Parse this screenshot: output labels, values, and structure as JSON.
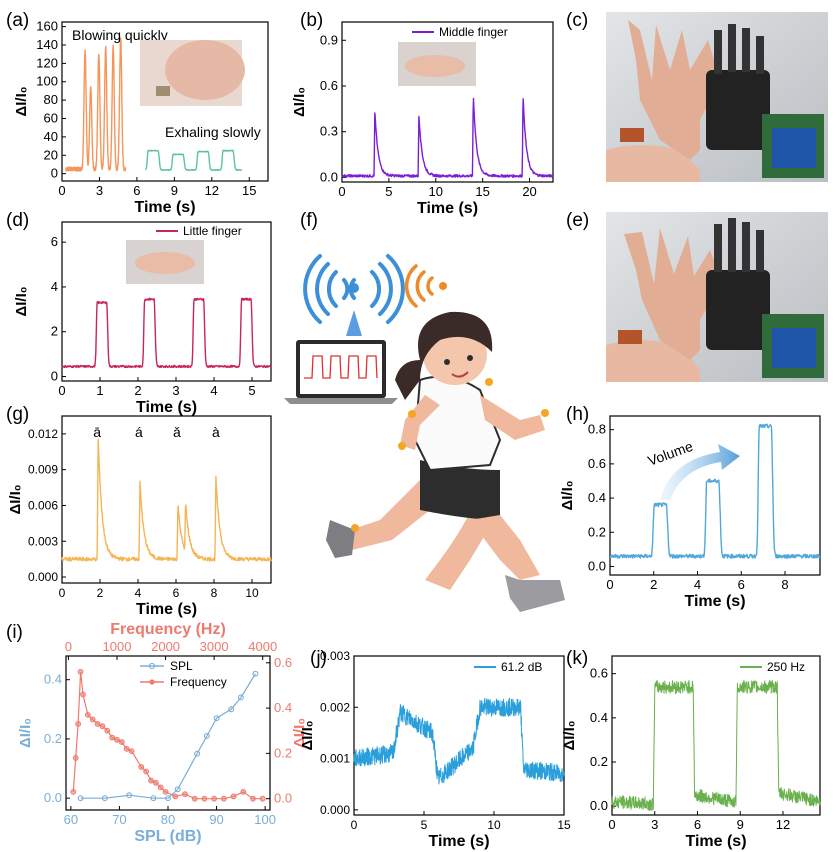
{
  "chart_data": [
    {
      "id": "a",
      "panel_label": "(a)",
      "type": "line",
      "xlabel": "Time (s)",
      "ylabel": "ΔI/I₀",
      "xlim": [
        0,
        16.5
      ],
      "ylim": [
        -8,
        165
      ],
      "xticks": [
        0,
        3,
        6,
        9,
        12,
        15
      ],
      "yticks": [
        0,
        20,
        40,
        60,
        80,
        100,
        120,
        140,
        160
      ],
      "annotations": [
        "Blowing quickly",
        "Exhaling slowly"
      ],
      "series": [
        {
          "name": "Blowing quickly",
          "color": "#f4965b",
          "peaks": [
            [
              1.85,
              134
            ],
            [
              2.3,
              95
            ],
            [
              2.95,
              130
            ],
            [
              3.5,
              138
            ],
            [
              4.1,
              138
            ],
            [
              4.7,
              148
            ]
          ],
          "baseline": 5,
          "x_range": [
            0.3,
            5.1
          ],
          "peak_width": 0.12
        },
        {
          "name": "Exhaling slowly",
          "color": "#5cc49b",
          "peaks": [
            [
              7.3,
              25
            ],
            [
              9.3,
              21
            ],
            [
              11.3,
              24
            ],
            [
              13.3,
              25
            ]
          ],
          "baseline": 4,
          "x_range": [
            6.7,
            14.4
          ],
          "plateau": 0.8
        }
      ]
    },
    {
      "id": "b",
      "panel_label": "(b)",
      "type": "line",
      "xlabel": "Time (s)",
      "ylabel": "ΔI/I₀",
      "xlim": [
        0,
        22.5
      ],
      "ylim": [
        -0.03,
        1.02
      ],
      "xticks": [
        0,
        5,
        10,
        15,
        20
      ],
      "yticks": [
        0.0,
        0.3,
        0.6,
        0.9
      ],
      "legend": [
        "Middle finger"
      ],
      "series": [
        {
          "name": "Middle finger",
          "color": "#7a1fd6",
          "peaks": [
            [
              3.5,
              0.44
            ],
            [
              8.2,
              0.42
            ],
            [
              14.0,
              0.55
            ],
            [
              19.3,
              0.55
            ]
          ],
          "baseline": 0.01,
          "x_range": [
            0,
            22.5
          ],
          "decay": 1.0
        }
      ]
    },
    {
      "id": "d",
      "panel_label": "(d)",
      "type": "line",
      "xlabel": "Time (s)",
      "ylabel": "ΔI/I₀",
      "xlim": [
        0,
        5.5
      ],
      "ylim": [
        -0.2,
        6.9
      ],
      "xticks": [
        0,
        1,
        2,
        3,
        4,
        5
      ],
      "yticks": [
        0,
        2,
        4,
        6
      ],
      "legend": [
        "Little finger"
      ],
      "series": [
        {
          "name": "Little finger",
          "color": "#c8245e",
          "peaks": [
            [
              1.05,
              3.3
            ],
            [
              2.3,
              3.45
            ],
            [
              3.6,
              3.45
            ],
            [
              4.85,
              3.45
            ]
          ],
          "baseline": 0.45,
          "x_range": [
            0,
            5.5
          ],
          "plateau": 0.25
        }
      ]
    },
    {
      "id": "g",
      "panel_label": "(g)",
      "type": "line",
      "xlabel": "Time (s)",
      "ylabel": "ΔI/I₀",
      "xlim": [
        0,
        11
      ],
      "ylim": [
        -0.0005,
        0.0135
      ],
      "xticks": [
        0,
        2,
        4,
        6,
        8,
        10
      ],
      "yticks": [
        0.0,
        0.003,
        0.006,
        0.009,
        0.012
      ],
      "tone_labels": [
        {
          "x": 1.85,
          "text": "ā"
        },
        {
          "x": 4.05,
          "text": "á"
        },
        {
          "x": 6.05,
          "text": "ǎ"
        },
        {
          "x": 8.1,
          "text": "à"
        }
      ],
      "series": [
        {
          "name": "Tones",
          "color": "#f5b555",
          "peaks": [
            [
              1.9,
              0.0118
            ],
            [
              4.1,
              0.008
            ],
            [
              6.1,
              0.0062
            ],
            [
              6.5,
              0.0063
            ],
            [
              8.1,
              0.0084
            ]
          ],
          "baseline": 0.0015,
          "x_range": [
            0,
            11
          ],
          "decay": 0.6
        }
      ]
    },
    {
      "id": "h",
      "panel_label": "(h)",
      "type": "line",
      "xlabel": "Time (s)",
      "ylabel": "ΔI/I₀",
      "xlim": [
        0,
        9.6
      ],
      "ylim": [
        -0.05,
        0.88
      ],
      "xticks": [
        0,
        2,
        4,
        6,
        8
      ],
      "yticks": [
        0.0,
        0.2,
        0.4,
        0.6,
        0.8
      ],
      "annotations": [
        "Volume"
      ],
      "series": [
        {
          "name": "Volume",
          "color": "#4fa7dc",
          "peaks": [
            [
              2.3,
              0.36
            ],
            [
              4.7,
              0.5
            ],
            [
              7.1,
              0.82
            ]
          ],
          "baseline": 0.06,
          "x_range": [
            0,
            9.6
          ],
          "plateau": 0.55
        }
      ]
    },
    {
      "id": "i",
      "panel_label": "(i)",
      "type": "scatter",
      "xlabel": "SPL (dB)",
      "ylabel": "ΔI/I₀",
      "top_xlabel": "Frequency (Hz)",
      "right_ylabel": "ΔI/I₀",
      "xlim": [
        59,
        101
      ],
      "ylim": [
        -0.04,
        0.48
      ],
      "xticks": [
        60,
        70,
        80,
        90,
        100
      ],
      "yticks": [
        0.0,
        0.2,
        0.4
      ],
      "top_xlim": [
        -50,
        4150
      ],
      "top_xticks": [
        0,
        1000,
        2000,
        3000,
        4000
      ],
      "right_ylim": [
        -0.05,
        0.63
      ],
      "right_yticks": [
        0.0,
        0.2,
        0.4,
        0.6
      ],
      "legend": [
        "SPL",
        "Frequency"
      ],
      "series": [
        {
          "name": "SPL",
          "color": "#7aaed6",
          "axis": "bottom-left",
          "x": [
            62,
            67,
            72,
            77,
            80,
            82,
            86,
            88,
            90,
            93,
            95,
            98
          ],
          "y": [
            0.0,
            0.0,
            0.01,
            0.0,
            0.0,
            0.03,
            0.15,
            0.21,
            0.27,
            0.3,
            0.34,
            0.42
          ]
        },
        {
          "name": "Frequency",
          "color": "#ee7a6e",
          "axis": "top-right",
          "x": [
            100,
            150,
            200,
            250,
            300,
            400,
            500,
            600,
            700,
            800,
            900,
            1000,
            1100,
            1200,
            1300,
            1500,
            1600,
            1700,
            1800,
            1900,
            2000,
            2200,
            2400,
            2600,
            2800,
            3000,
            3200,
            3400,
            3600,
            3800,
            4000
          ],
          "y": [
            0.03,
            0.18,
            0.33,
            0.56,
            0.46,
            0.37,
            0.35,
            0.33,
            0.32,
            0.3,
            0.27,
            0.26,
            0.25,
            0.22,
            0.21,
            0.14,
            0.12,
            0.08,
            0.07,
            0.05,
            0.03,
            0.01,
            0.02,
            0.0,
            0.0,
            0.0,
            0.0,
            0.01,
            0.03,
            0.0,
            0.0
          ]
        }
      ]
    },
    {
      "id": "j",
      "panel_label": "(j)",
      "type": "line",
      "xlabel": "Time (s)",
      "ylabel": "ΔI/I₀",
      "xlim": [
        0,
        15
      ],
      "ylim": [
        -0.0001,
        0.003
      ],
      "xticks": [
        0,
        5,
        10,
        15
      ],
      "yticks": [
        0.0,
        0.001,
        0.002,
        0.003
      ],
      "legend": [
        "61.2 dB"
      ],
      "series": [
        {
          "name": "61.2 dB",
          "color": "#2a9fdc",
          "segments": [
            [
              0,
              0.001
            ],
            [
              2.8,
              0.0011
            ],
            [
              3.3,
              0.0019
            ],
            [
              5.6,
              0.0015
            ],
            [
              6.0,
              0.0006
            ],
            [
              8.5,
              0.0012
            ],
            [
              9.0,
              0.002
            ],
            [
              11.9,
              0.002
            ],
            [
              12.1,
              0.0008
            ],
            [
              15,
              0.0007
            ]
          ]
        }
      ]
    },
    {
      "id": "k",
      "panel_label": "(k)",
      "type": "line",
      "xlabel": "Time (s)",
      "ylabel": "ΔI/I₀",
      "xlim": [
        0,
        14.6
      ],
      "ylim": [
        -0.04,
        0.68
      ],
      "xticks": [
        0,
        3,
        6,
        9,
        12
      ],
      "yticks": [
        0.0,
        0.2,
        0.4,
        0.6
      ],
      "legend": [
        "250 Hz"
      ],
      "series": [
        {
          "name": "250 Hz",
          "color": "#6ab04c",
          "segments": [
            [
              0,
              0.02
            ],
            [
              2.9,
              0.01
            ],
            [
              3.0,
              0.54
            ],
            [
              5.7,
              0.54
            ],
            [
              5.8,
              0.05
            ],
            [
              8.7,
              0.02
            ],
            [
              8.8,
              0.54
            ],
            [
              11.6,
              0.54
            ],
            [
              11.7,
              0.06
            ],
            [
              14.6,
              0.02
            ]
          ]
        }
      ]
    }
  ],
  "photo_panels": [
    {
      "panel_label": "(c)",
      "description": "robot-hand-photo-c"
    },
    {
      "panel_label": "(e)",
      "description": "robot-hand-photo-e"
    }
  ],
  "illustration": {
    "panel_label": "(f)"
  },
  "colors": {
    "axis": "#000000",
    "i_left": "#7aaed6",
    "i_right": "#ee7a6e",
    "photo_bg": "#cfd3d6"
  }
}
